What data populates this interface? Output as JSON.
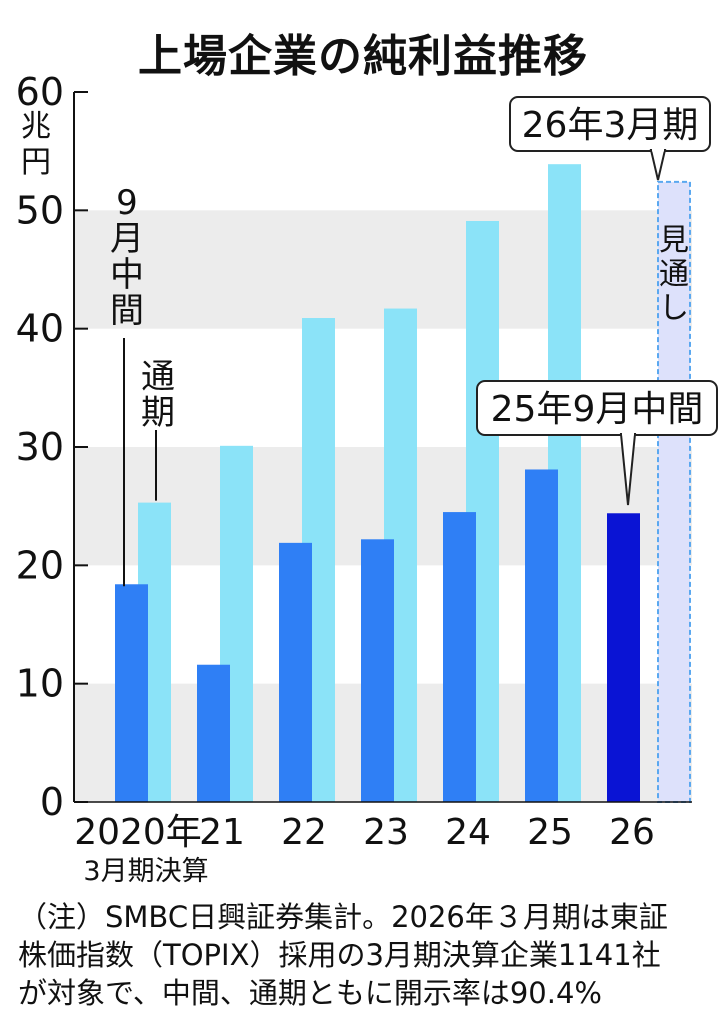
{
  "title": "上場企業の純利益推移",
  "colors": {
    "interim": "#2f7ff5",
    "fullyear": "#8be3f8",
    "interim_latest": "#0a14d4",
    "forecast_fill": "#dde1fb",
    "forecast_border": "#5aa8f0",
    "band": "#ececec"
  },
  "chart_data": {
    "type": "bar",
    "unit": "兆円",
    "unit_chars": [
      "兆",
      "円"
    ],
    "ylim": [
      0,
      60
    ],
    "yticks": [
      "0",
      "10",
      "20",
      "30",
      "40",
      "50",
      "60"
    ],
    "categories": [
      "2020年",
      "21",
      "22",
      "23",
      "24",
      "25",
      "26"
    ],
    "category_note": "3月期決算",
    "series": [
      {
        "name": "9月中間",
        "values": [
          18.4,
          11.6,
          21.9,
          22.2,
          24.5,
          28.1,
          24.4
        ]
      },
      {
        "name": "通期",
        "values": [
          25.3,
          30.1,
          40.9,
          41.7,
          49.1,
          53.9,
          52.4
        ]
      }
    ],
    "legend_chars": {
      "interim": [
        "9",
        "月",
        "中",
        "間"
      ],
      "fullyear": [
        "通",
        "期"
      ]
    },
    "forecast_chars": [
      "見",
      "通",
      "し"
    ],
    "callouts": {
      "forecast": "26年3月期",
      "latest_interim": "25年9月中間"
    }
  },
  "note": [
    "（注）SMBC日興証券集計。2026年３月期は東証",
    "株価指数（TOPIX）採用の3月期決算企業1141社",
    "が対象で、中間、通期ともに開示率は90.4%"
  ]
}
